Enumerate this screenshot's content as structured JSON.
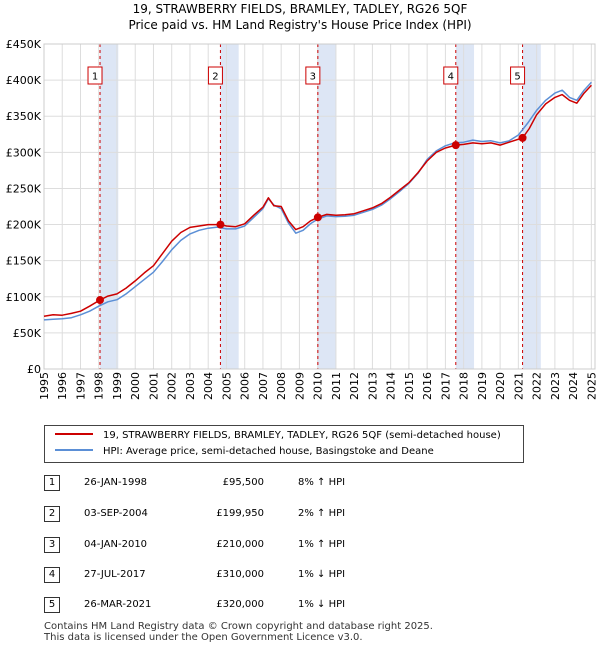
{
  "chart_data": {
    "type": "line",
    "title": "19, STRAWBERRY FIELDS, BRAMLEY, TADLEY, RG26 5QF",
    "subtitle": "Price paid vs. HM Land Registry's House Price Index (HPI)",
    "xlabel": "",
    "ylabel": "",
    "xlim": [
      1995,
      2025.2
    ],
    "ylim": [
      0,
      450000
    ],
    "y_ticks": [
      0,
      50000,
      100000,
      150000,
      200000,
      250000,
      300000,
      350000,
      400000,
      450000
    ],
    "y_tick_labels": [
      "£0",
      "£50K",
      "£100K",
      "£150K",
      "£200K",
      "£250K",
      "£300K",
      "£350K",
      "£400K",
      "£450K"
    ],
    "x_ticks": [
      1995,
      1996,
      1997,
      1998,
      1999,
      2000,
      2001,
      2002,
      2003,
      2004,
      2005,
      2006,
      2007,
      2008,
      2009,
      2010,
      2011,
      2012,
      2013,
      2014,
      2015,
      2016,
      2017,
      2018,
      2019,
      2020,
      2021,
      2022,
      2023,
      2024,
      2025
    ],
    "x_tick_labels": [
      "1995",
      "1996",
      "1997",
      "1998",
      "1999",
      "2000",
      "2001",
      "2002",
      "2003",
      "2004",
      "2005",
      "2006",
      "2007",
      "2008",
      "2009",
      "2010",
      "2011",
      "2012",
      "2013",
      "2014",
      "2015",
      "2016",
      "2017",
      "2018",
      "2019",
      "2020",
      "2021",
      "2022",
      "2023",
      "2024",
      "2025"
    ],
    "grid": true,
    "series": [
      {
        "name": "19, STRAWBERRY FIELDS, BRAMLEY, TADLEY, RG26 5QF (semi-detached house)",
        "color": "#cc0000",
        "x": [
          1995.0,
          1995.5,
          1996.0,
          1996.5,
          1997.0,
          1997.5,
          1998.07,
          1998.5,
          1999.0,
          1999.5,
          2000.0,
          2000.5,
          2001.0,
          2001.5,
          2002.0,
          2002.5,
          2003.0,
          2003.5,
          2004.0,
          2004.67,
          2005.0,
          2005.5,
          2006.0,
          2006.5,
          2007.0,
          2007.3,
          2007.6,
          2008.0,
          2008.4,
          2008.8,
          2009.2,
          2009.6,
          2010.01,
          2010.5,
          2011.0,
          2011.5,
          2012.0,
          2012.5,
          2013.0,
          2013.5,
          2014.0,
          2014.5,
          2015.0,
          2015.5,
          2016.0,
          2016.5,
          2017.0,
          2017.57,
          2018.0,
          2018.5,
          2019.0,
          2019.5,
          2020.0,
          2020.5,
          2021.23,
          2021.6,
          2022.0,
          2022.5,
          2023.0,
          2023.4,
          2023.8,
          2024.2,
          2024.6,
          2025.0
        ],
        "values": [
          73000,
          75000,
          74500,
          77000,
          80000,
          87000,
          95500,
          101000,
          104000,
          112000,
          122000,
          133000,
          143000,
          160000,
          177000,
          189000,
          196000,
          198000,
          200000,
          199950,
          198000,
          197000,
          201000,
          213000,
          224000,
          237000,
          226000,
          225000,
          205000,
          193000,
          197000,
          205000,
          210000,
          214000,
          213000,
          213500,
          215000,
          219000,
          223000,
          229000,
          238000,
          248000,
          258000,
          272000,
          288000,
          300000,
          306000,
          310000,
          311000,
          313000,
          312000,
          313000,
          310000,
          314000,
          320000,
          333000,
          352000,
          367000,
          376000,
          380000,
          372000,
          368000,
          382000,
          393000
        ]
      },
      {
        "name": "HPI: Average price, semi-detached house, Basingstoke and Deane",
        "color": "#5b8fd6",
        "x": [
          1995.0,
          1995.5,
          1996.0,
          1996.5,
          1997.0,
          1997.5,
          1998.0,
          1998.5,
          1999.0,
          1999.5,
          2000.0,
          2000.5,
          2001.0,
          2001.5,
          2002.0,
          2002.5,
          2003.0,
          2003.5,
          2004.0,
          2004.5,
          2005.0,
          2005.5,
          2006.0,
          2006.5,
          2007.0,
          2007.3,
          2007.6,
          2008.0,
          2008.4,
          2008.8,
          2009.2,
          2009.6,
          2010.0,
          2010.5,
          2011.0,
          2011.5,
          2012.0,
          2012.5,
          2013.0,
          2013.5,
          2014.0,
          2014.5,
          2015.0,
          2015.5,
          2016.0,
          2016.5,
          2017.0,
          2017.5,
          2018.0,
          2018.5,
          2019.0,
          2019.5,
          2020.0,
          2020.5,
          2021.0,
          2021.5,
          2022.0,
          2022.5,
          2023.0,
          2023.4,
          2023.8,
          2024.2,
          2024.6,
          2025.0
        ],
        "values": [
          68000,
          69000,
          69500,
          71000,
          75000,
          80000,
          87000,
          93000,
          96000,
          104000,
          114000,
          124000,
          134000,
          149000,
          165000,
          178000,
          187000,
          192000,
          195000,
          196500,
          194000,
          194000,
          198000,
          210000,
          222000,
          236000,
          227000,
          222000,
          202000,
          188000,
          192000,
          201000,
          207500,
          212000,
          211000,
          211500,
          213000,
          217000,
          221000,
          227000,
          236000,
          246000,
          257000,
          271000,
          290000,
          302000,
          309000,
          313000,
          314000,
          317000,
          315000,
          316000,
          313000,
          316000,
          324000,
          340000,
          358000,
          372000,
          382000,
          386000,
          376000,
          372000,
          386000,
          397000
        ]
      }
    ],
    "sales": [
      {
        "num": "1",
        "x": 1998.07,
        "value": 95500
      },
      {
        "num": "2",
        "x": 2004.67,
        "value": 199950
      },
      {
        "num": "3",
        "x": 2010.01,
        "value": 210000
      },
      {
        "num": "4",
        "x": 2017.57,
        "value": 310000
      },
      {
        "num": "5",
        "x": 2021.23,
        "value": 320000
      }
    ],
    "colors": {
      "sale_band": "#dde6f5",
      "grid": "#dddddd",
      "vline": "#cc0000"
    }
  },
  "legend": {
    "property_label": "19, STRAWBERRY FIELDS, BRAMLEY, TADLEY, RG26 5QF (semi-detached house)",
    "hpi_label": "HPI: Average price, semi-detached house, Basingstoke and Deane"
  },
  "sales_table": [
    {
      "num": "1",
      "date": "26-JAN-1998",
      "price": "£95,500",
      "hpi": "8% ↑ HPI"
    },
    {
      "num": "2",
      "date": "03-SEP-2004",
      "price": "£199,950",
      "hpi": "2% ↑ HPI"
    },
    {
      "num": "3",
      "date": "04-JAN-2010",
      "price": "£210,000",
      "hpi": "1% ↑ HPI"
    },
    {
      "num": "4",
      "date": "27-JUL-2017",
      "price": "£310,000",
      "hpi": "1% ↓ HPI"
    },
    {
      "num": "5",
      "date": "26-MAR-2021",
      "price": "£320,000",
      "hpi": "1% ↓ HPI"
    }
  ],
  "footer": {
    "line1": "Contains HM Land Registry data © Crown copyright and database right 2025.",
    "line2": "This data is licensed under the Open Government Licence v3.0."
  }
}
